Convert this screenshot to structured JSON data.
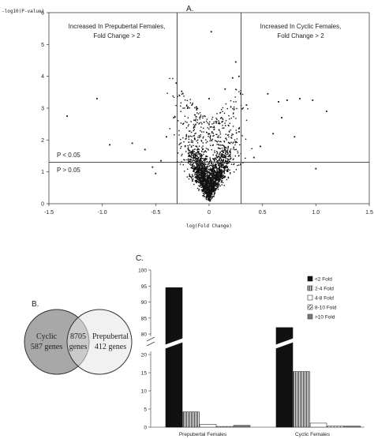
{
  "panels": {
    "a": {
      "letter": "A."
    },
    "b": {
      "letter": "B."
    },
    "c": {
      "letter": "C."
    }
  },
  "chart_data": [
    {
      "type": "scatter",
      "panel": "A",
      "title": "",
      "xlabel": "log(Fold Change)",
      "ylabel": "-log10(P-value)",
      "xlim": [
        -1.5,
        1.5
      ],
      "ylim": [
        0,
        6
      ],
      "xticks": [
        "-1.5",
        "-1.0",
        "-0.5",
        "0",
        "0.5",
        "1.0",
        "1.5"
      ],
      "yticks": [
        "0",
        "1",
        "2",
        "3",
        "4",
        "5",
        "6"
      ],
      "threshold_lines": {
        "x": [
          -0.3,
          0.3
        ],
        "y": 1.3
      },
      "annotations": {
        "left_region": [
          "Increased In Prepubertal Females,",
          "Fold Change > 2"
        ],
        "right_region": [
          "Increased In Cyclic Females,",
          "Fold Change  > 2"
        ],
        "p_below": "P < 0.05",
        "p_above": "P > 0.05"
      },
      "outlier_points": [
        [
          -1.33,
          2.75
        ],
        [
          -1.05,
          3.3
        ],
        [
          -0.93,
          1.85
        ],
        [
          -0.72,
          1.9
        ],
        [
          -0.6,
          1.7
        ],
        [
          -0.53,
          1.15
        ],
        [
          -0.45,
          1.35
        ],
        [
          -0.4,
          2.1
        ],
        [
          -0.33,
          2.7
        ],
        [
          -0.5,
          0.95
        ],
        [
          0.02,
          5.4
        ],
        [
          0.25,
          4.45
        ],
        [
          0.22,
          3.95
        ],
        [
          0.28,
          4.0
        ],
        [
          0.0,
          3.3
        ],
        [
          0.55,
          3.45
        ],
        [
          0.65,
          3.2
        ],
        [
          0.73,
          3.25
        ],
        [
          0.85,
          3.3
        ],
        [
          0.97,
          3.25
        ],
        [
          1.1,
          2.9
        ],
        [
          0.68,
          2.7
        ],
        [
          0.6,
          2.2
        ],
        [
          0.8,
          2.1
        ],
        [
          0.48,
          1.8
        ],
        [
          0.42,
          1.45
        ],
        [
          1.0,
          1.1
        ],
        [
          -0.2,
          3.0
        ],
        [
          0.15,
          3.6
        ],
        [
          0.35,
          3.1
        ]
      ]
    },
    {
      "type": "venn",
      "panel": "B",
      "sets": [
        {
          "label": "Cyclic",
          "count": "587 genes",
          "color": "#a8a8a8"
        },
        {
          "label": "Prepubertal",
          "count": "412 genes",
          "color": "#e6e6e6"
        }
      ],
      "overlap": {
        "count": "8705",
        "unit": "genes"
      }
    },
    {
      "type": "bar",
      "panel": "C",
      "categories": [
        "Prepubertal Females",
        "Cyclic Females"
      ],
      "series": [
        {
          "name": "<2 Fold",
          "values": [
            94.5,
            82
          ]
        },
        {
          "name": "2-4 Fold",
          "values": [
            4.2,
            15.3
          ]
        },
        {
          "name": "4-8 Fold",
          "values": [
            0.8,
            1.1
          ]
        },
        {
          "name": "8-10 Fold",
          "values": [
            0.2,
            0.3
          ]
        },
        {
          "name": ">10 Fold",
          "values": [
            0.5,
            0.3
          ]
        }
      ],
      "yticks": [
        "0",
        "5",
        "10",
        "15",
        "20",
        "80",
        "85",
        "90",
        "95",
        "100"
      ],
      "ylim": [
        0,
        100
      ],
      "axis_break": [
        20,
        80
      ],
      "legend_position": "top-right",
      "xlabel": "",
      "ylabel": ""
    }
  ]
}
